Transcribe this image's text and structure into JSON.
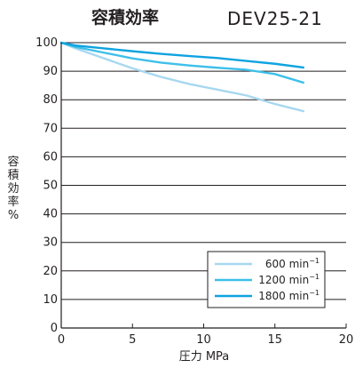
{
  "header": {
    "title": "容積効率",
    "model": "DEV25-21"
  },
  "chart_data": {
    "type": "line",
    "title": "容積効率",
    "xlabel": "圧力 MPa",
    "ylabel_chars": [
      "容",
      "積",
      "効",
      "率",
      "%"
    ],
    "xlim": [
      0,
      20
    ],
    "ylim": [
      0,
      100
    ],
    "xticks": [
      0,
      5,
      10,
      15,
      20
    ],
    "yticks": [
      0,
      10,
      20,
      30,
      40,
      50,
      60,
      70,
      80,
      90,
      100
    ],
    "grid": "horizontal",
    "legend_position": "bottom-right",
    "series": [
      {
        "name": "600",
        "unit": "min",
        "unit_sup": "−1",
        "color": "#a7d8f0",
        "x": [
          0,
          1,
          3,
          5,
          7,
          9,
          11,
          13,
          15,
          17
        ],
        "y": [
          100,
          98,
          94.5,
          91,
          88,
          85.5,
          83.5,
          81.5,
          78.5,
          76
        ]
      },
      {
        "name": "1200",
        "unit": "min",
        "unit_sup": "−1",
        "color": "#3ec0ea",
        "x": [
          0,
          1,
          3,
          5,
          7,
          9,
          11,
          13,
          15,
          17
        ],
        "y": [
          100,
          98.5,
          96.5,
          94.5,
          93,
          92,
          91.2,
          90.5,
          89,
          86
        ]
      },
      {
        "name": "1800",
        "unit": "min",
        "unit_sup": "−1",
        "color": "#0fa3e0",
        "x": [
          0,
          1,
          3,
          5,
          7,
          9,
          11,
          13,
          15,
          17
        ],
        "y": [
          100,
          99,
          98,
          97,
          96.1,
          95.3,
          94.6,
          93.6,
          92.6,
          91.3
        ]
      }
    ]
  }
}
